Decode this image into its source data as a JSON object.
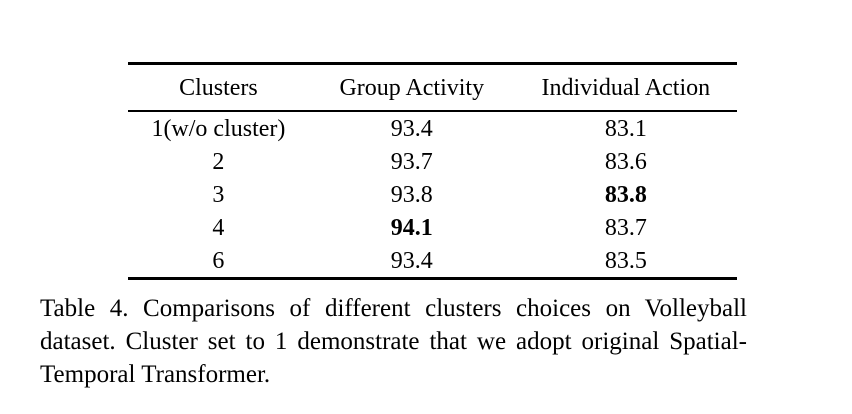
{
  "table": {
    "columns": [
      "Clusters",
      "Group Activity",
      "Individual Action"
    ],
    "rows": [
      {
        "cells": [
          "1(w/o cluster)",
          "93.4",
          "83.1"
        ],
        "bold": [
          false,
          false,
          false
        ]
      },
      {
        "cells": [
          "2",
          "93.7",
          "83.6"
        ],
        "bold": [
          false,
          false,
          false
        ]
      },
      {
        "cells": [
          "3",
          "93.8",
          "83.8"
        ],
        "bold": [
          false,
          false,
          true
        ]
      },
      {
        "cells": [
          "4",
          "94.1",
          "83.7"
        ],
        "bold": [
          false,
          true,
          false
        ]
      },
      {
        "cells": [
          "6",
          "93.4",
          "83.5"
        ],
        "bold": [
          false,
          false,
          false
        ]
      }
    ],
    "best_group_activity": "94.1",
    "best_individual_action": "83.8"
  },
  "caption": {
    "lines": [
      "Table 4. Comparisons of different clusters choices on Volleyball",
      "dataset. Cluster set to 1 demonstrate that we adopt original Spatial-",
      "Temporal Transformer."
    ]
  },
  "colors": {
    "text": "#000000",
    "background": "#ffffff",
    "rule": "#000000"
  }
}
